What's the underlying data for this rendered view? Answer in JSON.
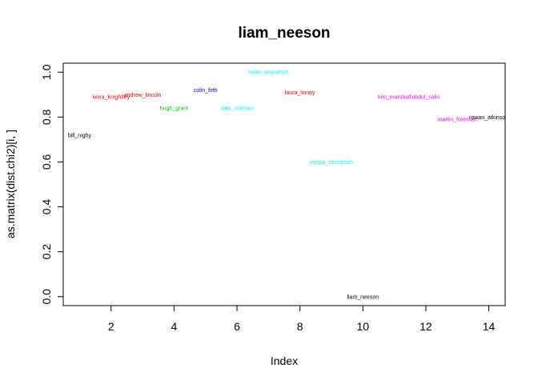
{
  "chart_data": {
    "type": "scatter",
    "title": "liam_neeson",
    "xlabel": "Index",
    "ylabel": "as.matrix(dist.chi2)[i, ]",
    "xlim": [
      0.48,
      14.52
    ],
    "ylim": [
      -0.04,
      1.04
    ],
    "x_ticks": [
      2,
      4,
      6,
      8,
      10,
      12,
      14
    ],
    "y_ticks": [
      0.0,
      0.2,
      0.4,
      0.6,
      0.8,
      1.0
    ],
    "y_tick_labels": [
      "0.0",
      "0.2",
      "0.4",
      "0.6",
      "0.8",
      "1.0"
    ],
    "grid": false,
    "points": [
      {
        "label": "bill_nighy",
        "x": 1,
        "y": 0.72,
        "color": "#000000"
      },
      {
        "label": "keira_knightley",
        "x": 2,
        "y": 0.89,
        "color": "#ff0000"
      },
      {
        "label": "andrew_lincoln",
        "x": 3,
        "y": 0.9,
        "color": "#ff0000"
      },
      {
        "label": "hugh_grant",
        "x": 4,
        "y": 0.84,
        "color": "#00cd00"
      },
      {
        "label": "colin_firth",
        "x": 5,
        "y": 0.92,
        "color": "#0000ff"
      },
      {
        "label": "alan_rickman",
        "x": 6,
        "y": 0.84,
        "color": "#00ffff"
      },
      {
        "label": "heike_makatsch",
        "x": 7,
        "y": 1.0,
        "color": "#00ffff"
      },
      {
        "label": "laura_linney",
        "x": 8,
        "y": 0.91,
        "color": "#ff0000"
      },
      {
        "label": "emma_thompson",
        "x": 9,
        "y": 0.6,
        "color": "#00ffff"
      },
      {
        "label": "liam_neeson",
        "x": 10,
        "y": 0.0,
        "color": "#000000"
      },
      {
        "label": "kris_marshall",
        "x": 11,
        "y": 0.89,
        "color": "#ff00ff"
      },
      {
        "label": "abdul_salis",
        "x": 12,
        "y": 0.89,
        "color": "#ff00ff"
      },
      {
        "label": "martin_freeman",
        "x": 13,
        "y": 0.79,
        "color": "#ff00ff"
      },
      {
        "label": "rowan_atkinson",
        "x": 14,
        "y": 0.8,
        "color": "#000000"
      }
    ]
  }
}
